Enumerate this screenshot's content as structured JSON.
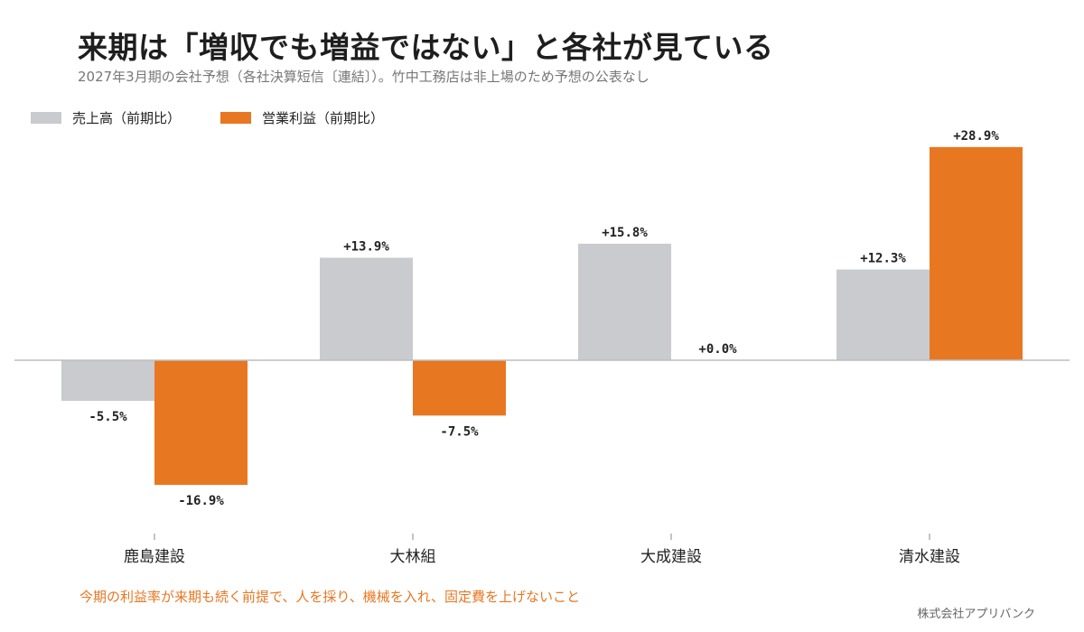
{
  "title": "来期は「増収でも増益ではない」と各社が見ている",
  "subtitle": "2027年3月期の会社予想（各社決算短信〔連結〕）。竹中工務店は非上場のため予想の公表なし",
  "footnote": "今期の利益率が来期も続く前提で、人を採り、機械を入れ、固定費を上げないこと",
  "credit": "株式会社アプリバンク",
  "colors": {
    "sales": "#c9cbcf",
    "operating_profit": "#e87722",
    "baseline": "#bdbdbd"
  },
  "chart_data": {
    "type": "bar",
    "categories": [
      "鹿島建設",
      "大林組",
      "大成建設",
      "清水建設"
    ],
    "series": [
      {
        "name": "売上高（前期比）",
        "key": "sales",
        "values": [
          -5.5,
          13.9,
          15.8,
          12.3
        ],
        "labels": [
          "-5.5%",
          "+13.9%",
          "+15.8%",
          "+12.3%"
        ]
      },
      {
        "name": "営業利益（前期比）",
        "key": "operating_profit",
        "values": [
          -16.9,
          -7.5,
          0.0,
          28.9
        ],
        "labels": [
          "-16.9%",
          "-7.5%",
          "+0.0%",
          "+28.9%"
        ]
      }
    ],
    "legend_position": "top-left",
    "grid": false,
    "ylim": [
      -20,
      30
    ]
  }
}
